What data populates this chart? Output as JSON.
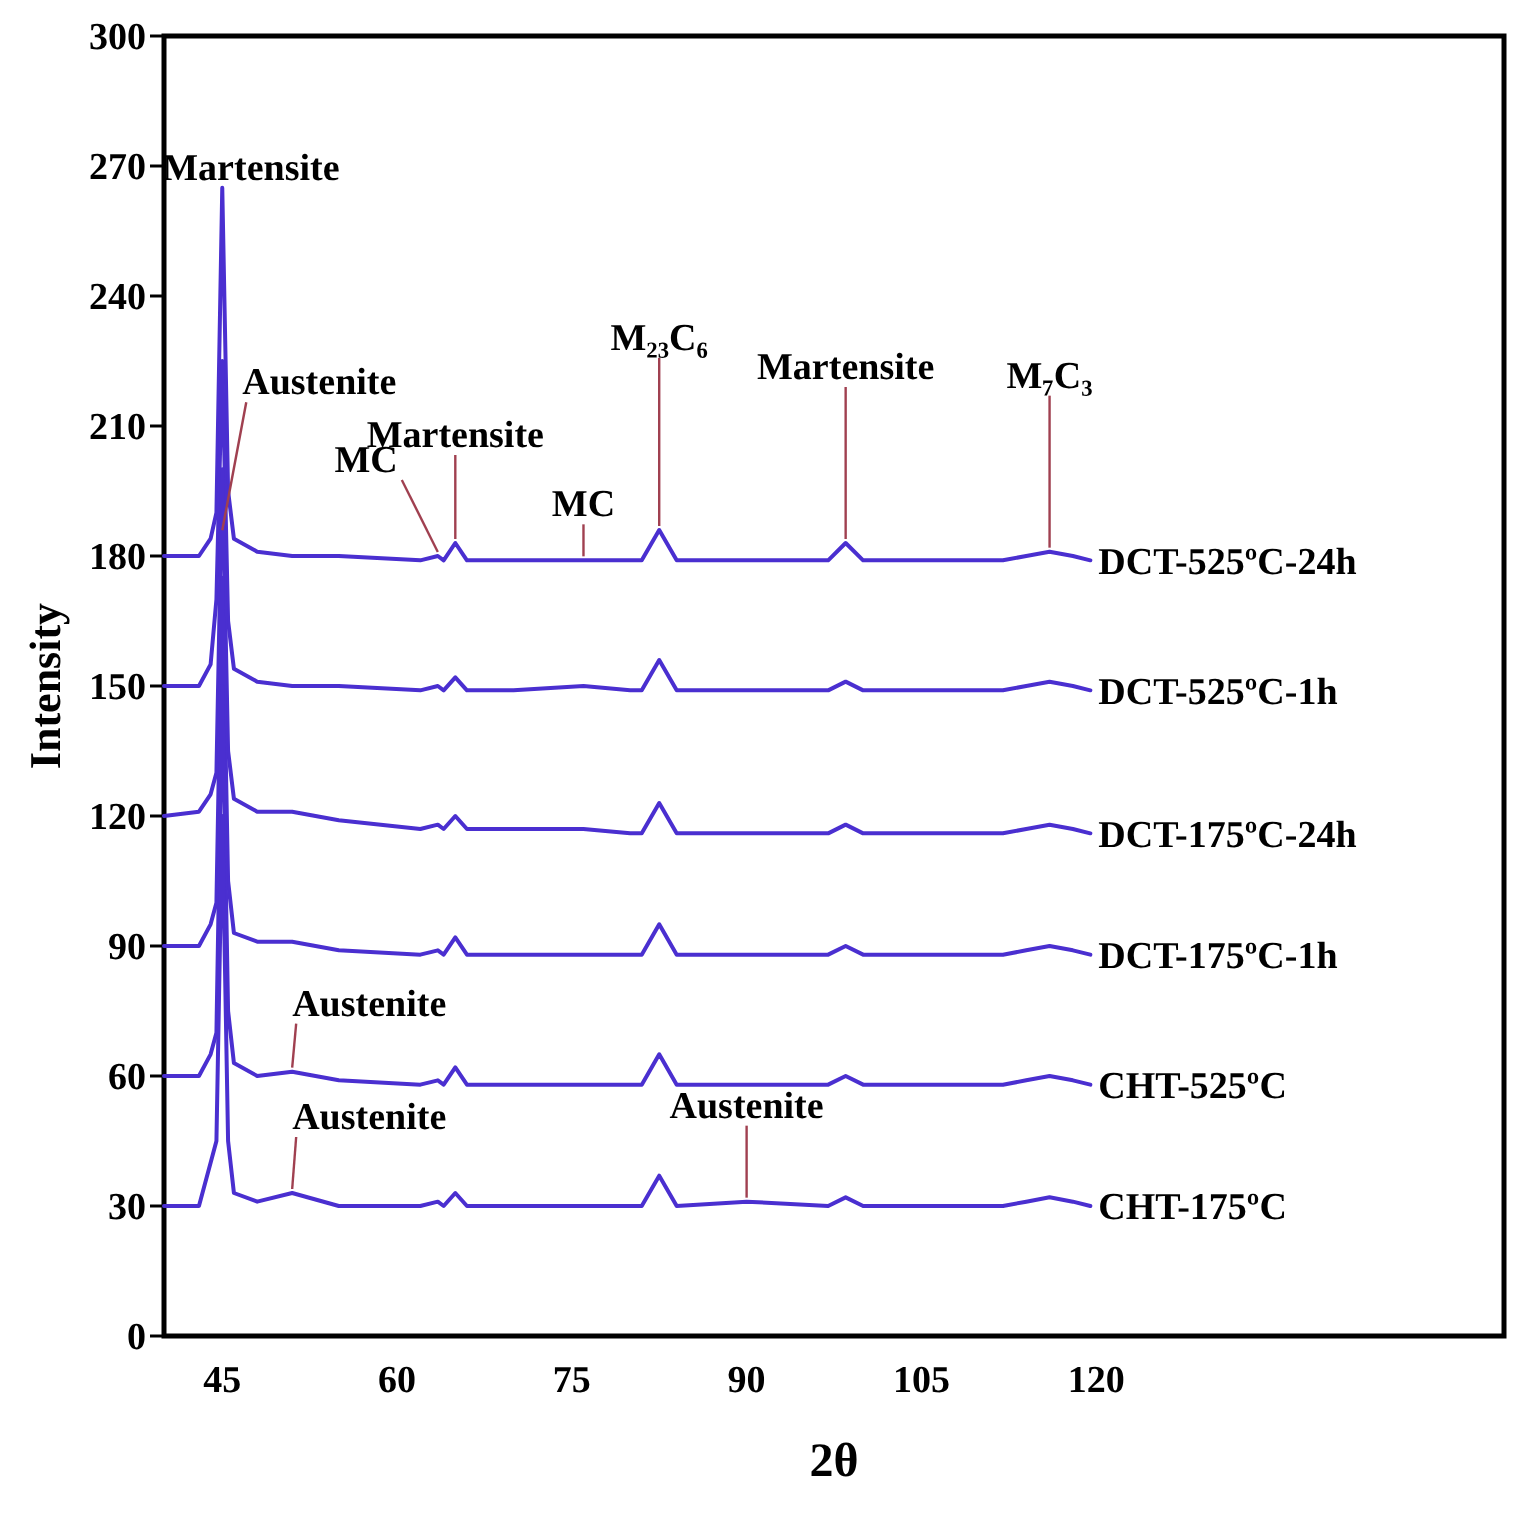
{
  "chart_data": {
    "type": "line",
    "xlabel": "2θ",
    "ylabel": "Intensity",
    "xlim": [
      40,
      155
    ],
    "ylim": [
      0,
      300
    ],
    "xticks": [
      45,
      60,
      75,
      90,
      105,
      120
    ],
    "yticks": [
      0,
      30,
      60,
      90,
      120,
      150,
      180,
      210,
      240,
      270,
      300
    ],
    "grid": false,
    "legend": false,
    "marker": "none",
    "line_style": "solid",
    "x": [
      40,
      43,
      44,
      44.5,
      45,
      45.5,
      46,
      48,
      51,
      55,
      62,
      63.5,
      64,
      65,
      66,
      70,
      76,
      80,
      81,
      82.5,
      84,
      90,
      97,
      98.5,
      100,
      105,
      112,
      114,
      116,
      118,
      119.5
    ],
    "series": [
      {
        "name": "DCT-525ºC-24h",
        "color": "#4a2fd0",
        "values": [
          180,
          180,
          184,
          190,
          265,
          195,
          184,
          181,
          180,
          180,
          179,
          180,
          179,
          183,
          179,
          179,
          179,
          179,
          179,
          186,
          179,
          179,
          179,
          183,
          179,
          179,
          179,
          180,
          181,
          180,
          179
        ]
      },
      {
        "name": "DCT-525ºC-1h",
        "color": "#4a2fd0",
        "values": [
          150,
          150,
          155,
          170,
          225,
          165,
          154,
          151,
          150,
          150,
          149,
          150,
          149,
          152,
          149,
          149,
          150,
          149,
          149,
          156,
          149,
          149,
          149,
          151,
          149,
          149,
          149,
          150,
          151,
          150,
          149
        ]
      },
      {
        "name": "DCT-175ºC-24h",
        "color": "#4a2fd0",
        "values": [
          120,
          121,
          125,
          130,
          200,
          135,
          124,
          121,
          121,
          119,
          117,
          118,
          117,
          120,
          117,
          117,
          117,
          116,
          116,
          123,
          116,
          116,
          116,
          118,
          116,
          116,
          116,
          117,
          118,
          117,
          116
        ]
      },
      {
        "name": "DCT-175ºC-1h",
        "color": "#4a2fd0",
        "values": [
          90,
          90,
          95,
          100,
          175,
          105,
          93,
          91,
          91,
          89,
          88,
          89,
          88,
          92,
          88,
          88,
          88,
          88,
          88,
          95,
          88,
          88,
          88,
          90,
          88,
          88,
          88,
          89,
          90,
          89,
          88
        ]
      },
      {
        "name": "CHT-525ºC",
        "color": "#4a2fd0",
        "values": [
          60,
          60,
          65,
          70,
          150,
          75,
          63,
          60,
          61,
          59,
          58,
          59,
          58,
          62,
          58,
          58,
          58,
          58,
          58,
          65,
          58,
          58,
          58,
          60,
          58,
          58,
          58,
          59,
          60,
          59,
          58
        ]
      },
      {
        "name": "CHT-175ºC",
        "color": "#4a2fd0",
        "values": [
          30,
          30,
          40,
          45,
          120,
          45,
          33,
          31,
          33,
          30,
          30,
          31,
          30,
          33,
          30,
          30,
          30,
          30,
          30,
          37,
          30,
          31,
          30,
          32,
          30,
          30,
          30,
          31,
          32,
          31,
          30
        ]
      }
    ],
    "annotations": [
      {
        "text": "Martensite",
        "x": 45,
        "y": 265
      },
      {
        "text": "Austenite",
        "x": 45,
        "y": 185
      },
      {
        "text": "MC",
        "x": 63.5,
        "y": 180
      },
      {
        "text": "Martensite",
        "x": 65,
        "y": 183
      },
      {
        "text": "MC",
        "x": 76,
        "y": 179
      },
      {
        "text": "M₂₃C₆",
        "x": 82.5,
        "y": 186
      },
      {
        "text": "Martensite",
        "x": 98.5,
        "y": 183
      },
      {
        "text": "M₇C₃",
        "x": 116,
        "y": 181
      },
      {
        "text": "Austenite",
        "x": 51,
        "y": 61
      },
      {
        "text": "Austenite",
        "x": 51,
        "y": 33
      },
      {
        "text": "Austenite",
        "x": 90,
        "y": 31
      }
    ]
  }
}
